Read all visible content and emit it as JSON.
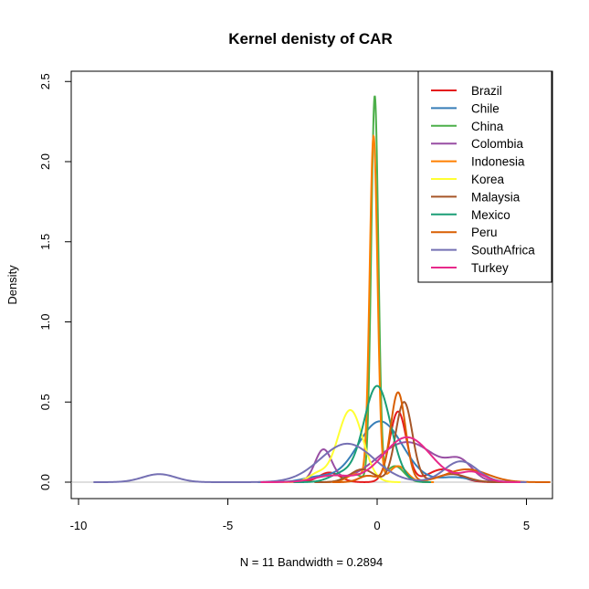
{
  "chart_data": {
    "type": "line",
    "title": "Kernel denisty of CAR",
    "xlabel": "N = 11   Bandwidth = 0.2894",
    "ylabel": "Density",
    "xlim": [
      -10,
      6
    ],
    "ylim": [
      0,
      2.55
    ],
    "xticks": [
      -10,
      -5,
      0,
      5
    ],
    "xtick_labels": [
      "-10",
      "-5",
      "0",
      "5"
    ],
    "yticks": [
      0.0,
      0.5,
      1.0,
      1.5,
      2.0,
      2.5
    ],
    "ytick_labels": [
      "0.0",
      "0.5",
      "1.0",
      "1.5",
      "2.0",
      "2.5"
    ],
    "legend_position": "top-right",
    "series": [
      {
        "name": "Brazil",
        "color": "#E41A1C",
        "components": [
          [
            0.7,
            0.28,
            0.44
          ],
          [
            -1.6,
            0.35,
            0.06
          ],
          [
            2.2,
            0.5,
            0.08
          ]
        ]
      },
      {
        "name": "Chile",
        "color": "#377EB8",
        "components": [
          [
            0.1,
            0.75,
            0.38
          ],
          [
            -2.0,
            0.5,
            0.03
          ],
          [
            2.6,
            0.5,
            0.03
          ]
        ]
      },
      {
        "name": "China",
        "color": "#4DAF4A",
        "components": [
          [
            -0.08,
            0.12,
            2.4
          ],
          [
            0.6,
            0.3,
            0.1
          ],
          [
            -0.8,
            0.3,
            0.05
          ]
        ]
      },
      {
        "name": "Colombia",
        "color": "#984EA3",
        "components": [
          [
            -1.8,
            0.28,
            0.2
          ],
          [
            1.0,
            1.0,
            0.25
          ],
          [
            2.8,
            0.4,
            0.1
          ]
        ]
      },
      {
        "name": "Indonesia",
        "color": "#FF7F00",
        "components": [
          [
            -0.12,
            0.13,
            2.15
          ],
          [
            0.7,
            0.3,
            0.1
          ],
          [
            -0.7,
            0.3,
            0.05
          ]
        ]
      },
      {
        "name": "Korea",
        "color": "#FFFF33",
        "components": [
          [
            -0.9,
            0.42,
            0.45
          ],
          [
            -2.0,
            0.3,
            0.05
          ]
        ]
      },
      {
        "name": "Malaysia",
        "color": "#A65628",
        "components": [
          [
            0.9,
            0.28,
            0.5
          ],
          [
            -0.5,
            0.4,
            0.08
          ],
          [
            2.5,
            0.5,
            0.05
          ]
        ]
      },
      {
        "name": "Mexico",
        "color": "#1B9E77",
        "components": [
          [
            0.0,
            0.45,
            0.6
          ],
          [
            -1.2,
            0.4,
            0.05
          ]
        ]
      },
      {
        "name": "Peru",
        "color": "#D95F02",
        "components": [
          [
            0.7,
            0.25,
            0.56
          ],
          [
            -0.3,
            0.3,
            0.04
          ],
          [
            3.0,
            0.7,
            0.08
          ]
        ]
      },
      {
        "name": "SouthAfrica",
        "color": "#7570B3",
        "components": [
          [
            -7.3,
            0.55,
            0.05
          ],
          [
            -1.0,
            0.9,
            0.24
          ],
          [
            2.8,
            0.55,
            0.13
          ]
        ]
      },
      {
        "name": "Turkey",
        "color": "#E7298A",
        "components": [
          [
            1.0,
            0.8,
            0.28
          ],
          [
            -1.5,
            0.6,
            0.04
          ],
          [
            3.2,
            0.4,
            0.06
          ]
        ]
      }
    ]
  }
}
